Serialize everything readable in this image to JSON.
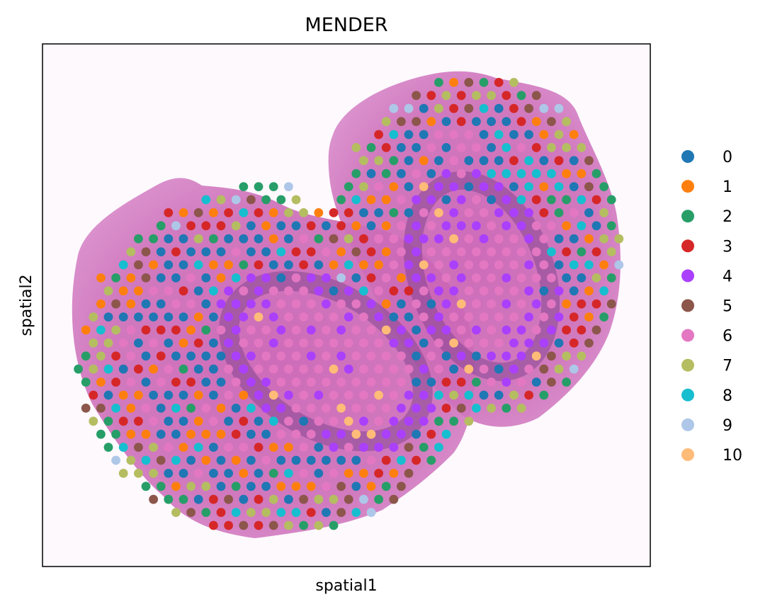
{
  "chart_data": {
    "type": "scatter",
    "title": "MENDER",
    "xlabel": "spatial1",
    "ylabel": "spatial2",
    "background": "H&E tissue image with two adjacent tissue lobes",
    "grid": false,
    "legend_placement": "right",
    "categories": [
      "0",
      "1",
      "2",
      "3",
      "4",
      "5",
      "6",
      "7",
      "8",
      "9",
      "10"
    ],
    "colors": [
      "#1f77b4",
      "#ff7f0e",
      "#279e68",
      "#d62728",
      "#aa40fc",
      "#8c564b",
      "#e377c2",
      "#b5bd61",
      "#17becf",
      "#aec7e8",
      "#ffbb78"
    ],
    "layout_note": "spots on a hexagonal lattice covering two overlapping lobes; cluster 6 and 4 form inner rings, clusters 2,5,7,9 dominate the outer rim"
  }
}
